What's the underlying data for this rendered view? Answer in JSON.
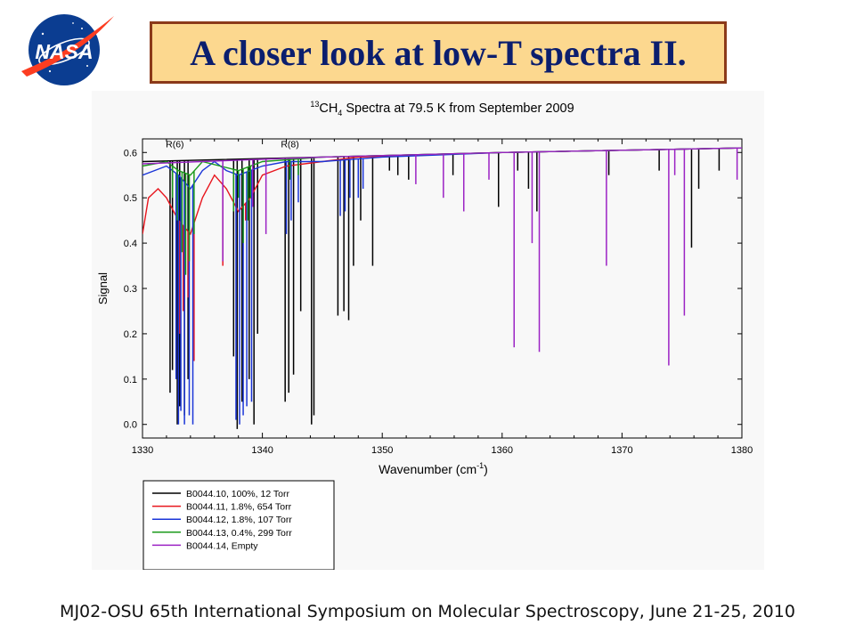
{
  "slide": {
    "title": "A closer look at low-T spectra II.",
    "footer": "MJ02-OSU 65th International Symposium on Molecular Spectroscopy, June 21-25, 2010",
    "logo": {
      "text": "NASA",
      "icon": "nasa-meatball-logo"
    }
  },
  "colors": {
    "title_bg": "#fcd88f",
    "title_border": "#8b3a1a",
    "title_text": "#0b1e6e",
    "nasa_blue": "#0b3d91",
    "nasa_red": "#fc3d21"
  },
  "chart_data": {
    "type": "line",
    "title": {
      "sup": "13",
      "pre": "CH",
      "sub": "4",
      "rest": " Spectra at 79.5 K from September 2009"
    },
    "xlabel": {
      "pre": "Wavenumber (cm",
      "sup": "-1",
      "post": ")"
    },
    "ylabel": "Signal",
    "xlim": [
      1330,
      1380
    ],
    "ylim": [
      -0.03,
      0.63
    ],
    "xticks": [
      1330,
      1340,
      1350,
      1360,
      1370,
      1380
    ],
    "yticks": [
      0.0,
      0.1,
      0.2,
      0.3,
      0.4,
      0.5,
      0.6
    ],
    "grid": false,
    "annotations": [
      {
        "text": "R(6)",
        "x": 1332.7,
        "y": 0.615
      },
      {
        "text": "R(8)",
        "x": 1342.3,
        "y": 0.615
      }
    ],
    "legend_position": "below plot, left",
    "series": [
      {
        "name": "B0044.10, 100%, 12 Torr",
        "color": "#000000",
        "baseline": [
          [
            1330,
            0.58
          ],
          [
            1345,
            0.59
          ],
          [
            1360,
            0.6
          ],
          [
            1380,
            0.61
          ]
        ],
        "lines": [
          [
            1332.3,
            0.07
          ],
          [
            1332.5,
            0.12
          ],
          [
            1332.9,
            0.0
          ],
          [
            1333.1,
            0.04
          ],
          [
            1333.5,
            0.02
          ],
          [
            1333.8,
            0.1
          ],
          [
            1337.6,
            0.15
          ],
          [
            1337.9,
            -0.01
          ],
          [
            1338.3,
            0.05
          ],
          [
            1338.9,
            0.1
          ],
          [
            1339.3,
            0.0
          ],
          [
            1339.6,
            0.2
          ],
          [
            1341.9,
            0.05
          ],
          [
            1342.2,
            0.07
          ],
          [
            1342.6,
            0.11
          ],
          [
            1343.2,
            0.25
          ],
          [
            1344.1,
            0.0
          ],
          [
            1344.3,
            0.02
          ],
          [
            1346.3,
            0.24
          ],
          [
            1346.8,
            0.25
          ],
          [
            1347.2,
            0.23
          ],
          [
            1347.6,
            0.35
          ],
          [
            1348.2,
            0.45
          ],
          [
            1349.2,
            0.35
          ],
          [
            1350.6,
            0.56
          ],
          [
            1351.3,
            0.55
          ],
          [
            1352.2,
            0.54
          ],
          [
            1355.9,
            0.55
          ],
          [
            1359.7,
            0.48
          ],
          [
            1361.3,
            0.56
          ],
          [
            1362.2,
            0.52
          ],
          [
            1362.9,
            0.47
          ],
          [
            1368.9,
            0.55
          ],
          [
            1373.1,
            0.56
          ],
          [
            1375.8,
            0.39
          ],
          [
            1376.4,
            0.52
          ],
          [
            1378.1,
            0.56
          ]
        ]
      },
      {
        "name": "B0044.11, 1.8%, 654 Torr",
        "color": "#e8161e",
        "baseline": [
          [
            1330,
            0.42
          ],
          [
            1330.5,
            0.5
          ],
          [
            1331.3,
            0.52
          ],
          [
            1332.0,
            0.5
          ],
          [
            1333.0,
            0.45
          ],
          [
            1334.0,
            0.42
          ],
          [
            1335.0,
            0.5
          ],
          [
            1336.0,
            0.55
          ],
          [
            1337.0,
            0.52
          ],
          [
            1338.0,
            0.47
          ],
          [
            1339.0,
            0.5
          ],
          [
            1340.0,
            0.55
          ],
          [
            1342.0,
            0.57
          ],
          [
            1345.0,
            0.58
          ],
          [
            1348.0,
            0.59
          ],
          [
            1360.0,
            0.6
          ],
          [
            1380.0,
            0.61
          ]
        ],
        "lines": [
          [
            1333.1,
            0.2
          ],
          [
            1333.4,
            0.25
          ],
          [
            1333.8,
            0.28
          ],
          [
            1334.3,
            0.14
          ],
          [
            1336.7,
            0.35
          ],
          [
            1337.8,
            0.5
          ],
          [
            1338.6,
            0.45
          ]
        ]
      },
      {
        "name": "B0044.12, 1.8%, 107 Torr",
        "color": "#1a35d8",
        "baseline": [
          [
            1330,
            0.55
          ],
          [
            1331.0,
            0.56
          ],
          [
            1332.0,
            0.57
          ],
          [
            1333.0,
            0.55
          ],
          [
            1334.0,
            0.52
          ],
          [
            1335.0,
            0.56
          ],
          [
            1336.0,
            0.58
          ],
          [
            1337.0,
            0.56
          ],
          [
            1338.0,
            0.55
          ],
          [
            1340.0,
            0.57
          ],
          [
            1342.0,
            0.58
          ],
          [
            1345.0,
            0.58
          ],
          [
            1350.0,
            0.59
          ],
          [
            1360.0,
            0.6
          ],
          [
            1380.0,
            0.61
          ]
        ],
        "lines": [
          [
            1332.8,
            0.1
          ],
          [
            1333.0,
            0.0
          ],
          [
            1333.2,
            0.03
          ],
          [
            1333.5,
            0.0
          ],
          [
            1333.9,
            0.02
          ],
          [
            1334.2,
            0.0
          ],
          [
            1337.8,
            0.01
          ],
          [
            1338.1,
            0.0
          ],
          [
            1338.4,
            0.02
          ],
          [
            1338.7,
            0.04
          ],
          [
            1339.1,
            0.05
          ],
          [
            1342.0,
            0.42
          ],
          [
            1342.4,
            0.45
          ],
          [
            1343.0,
            0.49
          ],
          [
            1346.5,
            0.46
          ],
          [
            1346.9,
            0.47
          ],
          [
            1347.3,
            0.5
          ],
          [
            1348.0,
            0.5
          ],
          [
            1348.4,
            0.52
          ]
        ]
      },
      {
        "name": "B0044.13, 0.4%, 299 Torr",
        "color": "#1b9a1b",
        "baseline": [
          [
            1330,
            0.57
          ],
          [
            1332.0,
            0.58
          ],
          [
            1333.0,
            0.56
          ],
          [
            1334.0,
            0.55
          ],
          [
            1335.0,
            0.58
          ],
          [
            1338.0,
            0.56
          ],
          [
            1340.0,
            0.58
          ],
          [
            1345.0,
            0.59
          ],
          [
            1360.0,
            0.6
          ],
          [
            1380.0,
            0.61
          ]
        ],
        "lines": [
          [
            1332.5,
            0.5
          ],
          [
            1332.9,
            0.45
          ],
          [
            1333.3,
            0.38
          ],
          [
            1333.6,
            0.33
          ],
          [
            1333.9,
            0.36
          ],
          [
            1334.3,
            0.42
          ],
          [
            1337.6,
            0.47
          ],
          [
            1338.0,
            0.5
          ],
          [
            1338.4,
            0.4
          ],
          [
            1338.8,
            0.45
          ],
          [
            1339.0,
            0.5
          ],
          [
            1342.3,
            0.54
          ],
          [
            1343.0,
            0.55
          ]
        ]
      },
      {
        "name": "B0044.14, Empty",
        "color": "#9b22c4",
        "baseline": [
          [
            1330,
            0.575
          ],
          [
            1345,
            0.59
          ],
          [
            1360,
            0.6
          ],
          [
            1380,
            0.61
          ]
        ],
        "lines": [
          [
            1336.7,
            0.36
          ],
          [
            1339.2,
            0.48
          ],
          [
            1340.3,
            0.42
          ],
          [
            1352.8,
            0.53
          ],
          [
            1355.1,
            0.5
          ],
          [
            1356.8,
            0.47
          ],
          [
            1358.9,
            0.54
          ],
          [
            1361.0,
            0.17
          ],
          [
            1362.5,
            0.4
          ],
          [
            1363.1,
            0.16
          ],
          [
            1368.7,
            0.35
          ],
          [
            1373.9,
            0.13
          ],
          [
            1374.4,
            0.55
          ],
          [
            1375.2,
            0.24
          ],
          [
            1379.6,
            0.54
          ]
        ]
      }
    ]
  }
}
